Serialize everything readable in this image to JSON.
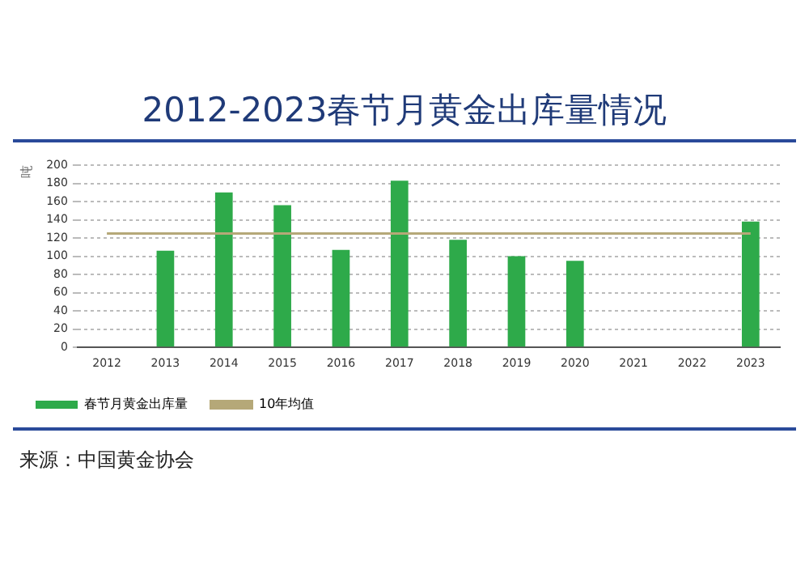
{
  "chart_data": {
    "type": "bar",
    "title": "2012-2023春节月黄金出库量情况",
    "ylabel": "吨",
    "categories": [
      "2012",
      "2013",
      "2014",
      "2015",
      "2016",
      "2017",
      "2018",
      "2019",
      "2020",
      "2021",
      "2022",
      "2023"
    ],
    "series": [
      {
        "name": "春节月黄金出库量",
        "color": "#2eaa4a",
        "values": [
          null,
          106,
          170,
          156,
          107,
          183,
          118,
          100,
          95,
          null,
          null,
          138
        ]
      },
      {
        "name": "10年均值",
        "type": "line",
        "color": "#b5a878",
        "values": [
          125,
          125,
          125,
          125,
          125,
          125,
          125,
          125,
          125,
          125,
          125,
          125
        ]
      }
    ],
    "ylim": [
      0,
      200
    ],
    "yticks": [
      0,
      20,
      40,
      60,
      80,
      100,
      120,
      140,
      160,
      180,
      200
    ],
    "grid": "y",
    "legend": "bottom",
    "marker": "none",
    "annotations": [
      "来源：中国黄金协会"
    ]
  }
}
